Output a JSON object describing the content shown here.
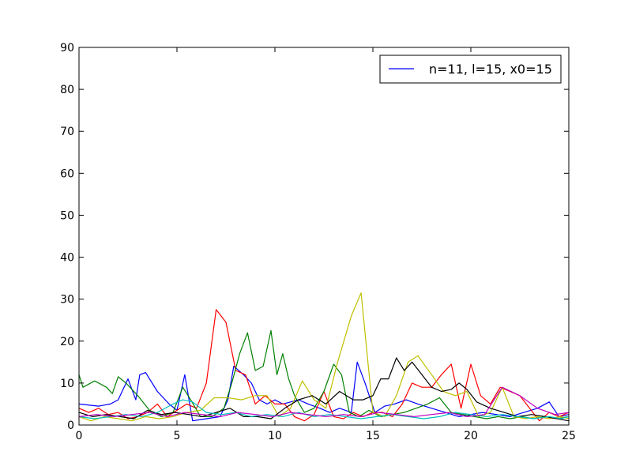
{
  "chart_data": {
    "type": "line",
    "title": "",
    "xlabel": "",
    "ylabel": "",
    "xlim": [
      0,
      25
    ],
    "ylim": [
      0,
      90
    ],
    "xticks": [
      "0",
      "5",
      "10",
      "15",
      "20",
      "25"
    ],
    "yticks": [
      "0",
      "10",
      "20",
      "30",
      "40",
      "50",
      "60",
      "70",
      "80",
      "90"
    ],
    "grid": false,
    "legend": {
      "position": "top-right",
      "entries": [
        {
          "label": "n=11, l=15, x0=15",
          "color": "#0000ff"
        }
      ]
    },
    "series": [
      {
        "name": "n=11, l=15, x0=15",
        "color": "#0000ff",
        "x": [
          0,
          1,
          1.6,
          2,
          2.5,
          2.9,
          3.1,
          3.4,
          4,
          4.6,
          5,
          5.4,
          5.8,
          6.5,
          7.2,
          7.6,
          7.9,
          8.4,
          8.8,
          9.2,
          9.6,
          10,
          10.4,
          10.8,
          11.2,
          11.7,
          12.3,
          12.8,
          13.3,
          13.9,
          14.2,
          14.6,
          15.1,
          15.6,
          16.1,
          16.7,
          17.3,
          18,
          18.7,
          19.4,
          20,
          20.6,
          21.3,
          22,
          22.7,
          23.4,
          24,
          24.5,
          25
        ],
        "y": [
          5,
          4.5,
          5,
          6,
          11,
          6,
          12,
          12.5,
          8,
          5,
          3.5,
          12,
          1,
          1.5,
          2,
          6,
          14,
          12,
          10,
          6,
          5,
          6,
          5,
          5.5,
          6,
          5,
          4,
          3,
          4,
          3,
          15,
          10,
          3,
          4.5,
          5,
          6,
          5,
          4,
          3,
          2,
          2.5,
          3,
          2.5,
          2,
          3,
          4,
          5.5,
          2,
          2.5
        ]
      },
      {
        "name": "",
        "color": "#ff0000",
        "x": [
          0,
          0.5,
          1,
          1.5,
          2,
          2.5,
          3,
          3.5,
          4,
          4.5,
          5,
          5.5,
          6,
          6.5,
          7,
          7.5,
          8,
          8.5,
          9,
          9.5,
          10,
          10.5,
          11,
          11.5,
          12,
          12.5,
          13,
          13.5,
          14,
          14.5,
          15,
          15.5,
          16,
          16.5,
          17,
          17.5,
          18,
          18.5,
          19,
          19.5,
          20,
          20.5,
          21,
          21.5,
          22,
          22.5,
          23,
          23.5,
          24,
          24.5,
          25
        ],
        "y": [
          4,
          3,
          4,
          2.5,
          3,
          1.5,
          2,
          3,
          5,
          2,
          3.5,
          5,
          4,
          10,
          27.5,
          24.5,
          13,
          12,
          5,
          7,
          5,
          5,
          2,
          1,
          2.5,
          8,
          2,
          1.5,
          3,
          2,
          3,
          3,
          2,
          5,
          10,
          9,
          9,
          12,
          14.5,
          4,
          14.5,
          7,
          5,
          9,
          8,
          7,
          4,
          1,
          3,
          2,
          3
        ]
      },
      {
        "name": "",
        "color": "#008000",
        "x": [
          0,
          0.2,
          0.8,
          1.4,
          1.7,
          2,
          2.4,
          3,
          3.6,
          4.2,
          4.8,
          5.3,
          5.7,
          6.2,
          6.8,
          7.4,
          7.8,
          8.2,
          8.6,
          9,
          9.4,
          9.8,
          10.1,
          10.4,
          10.7,
          11,
          11.5,
          12,
          12.5,
          13,
          13.4,
          13.8,
          14.3,
          14.8,
          15.4,
          16,
          16.6,
          17.2,
          17.8,
          18.4,
          19,
          19.6,
          20.2,
          20.8,
          21.4,
          22,
          22.6,
          23.2,
          23.8,
          24.4,
          25
        ],
        "y": [
          12,
          9,
          10.5,
          9,
          7.5,
          11.5,
          10,
          7,
          3.5,
          2,
          3,
          9,
          6,
          2,
          2,
          4,
          10,
          17,
          22,
          13,
          14,
          22.5,
          12,
          17,
          11,
          7,
          3,
          4,
          8,
          14.5,
          12,
          3,
          2,
          3.5,
          2,
          2.5,
          3,
          4,
          5,
          6.5,
          3,
          2.5,
          2,
          1.5,
          2,
          1.5,
          2,
          1.5,
          2,
          1.5,
          2
        ]
      },
      {
        "name": "",
        "color": "#bfbf00",
        "x": [
          0,
          0.6,
          1.3,
          2,
          2.7,
          3.4,
          4.1,
          4.8,
          5.5,
          6.2,
          6.9,
          7.6,
          8.3,
          9,
          9.6,
          10.2,
          10.8,
          11.4,
          12,
          12.6,
          13.2,
          13.9,
          14.4,
          15,
          15.6,
          16.2,
          16.8,
          17.3,
          18,
          18.6,
          19.2,
          19.8,
          20.4,
          21,
          21.6,
          22.2,
          22.8,
          23.4,
          24,
          24.6,
          25
        ],
        "y": [
          2,
          1,
          2,
          1.5,
          1,
          2,
          1.5,
          2,
          3,
          3.5,
          6.5,
          6.5,
          6,
          7,
          7,
          2,
          4,
          10.5,
          6,
          4,
          15,
          26,
          31.5,
          3,
          2,
          7,
          15,
          16.5,
          12,
          8,
          7,
          8,
          2,
          3,
          9,
          2,
          1.5,
          2,
          1.5,
          2,
          1.5
        ]
      },
      {
        "name": "",
        "color": "#000000",
        "x": [
          0,
          0.7,
          1.4,
          2.1,
          2.8,
          3.5,
          4.2,
          4.9,
          5.6,
          6.3,
          7,
          7.7,
          8.4,
          9.1,
          9.8,
          10.5,
          11.2,
          11.9,
          12.6,
          13.3,
          14,
          14.5,
          15,
          15.4,
          15.8,
          16.2,
          16.6,
          17,
          17.5,
          18,
          18.5,
          19,
          19.4,
          19.8,
          20.3,
          21,
          21.7,
          22.4,
          23.1,
          23.8,
          24.4,
          25
        ],
        "y": [
          3,
          2,
          2.5,
          2,
          1.5,
          3.5,
          2.5,
          3,
          2.5,
          2,
          3,
          4,
          2,
          2,
          1.5,
          4,
          6,
          7,
          5,
          8,
          6,
          6,
          7,
          11,
          11,
          16,
          13,
          15,
          12,
          9,
          8,
          8.5,
          10,
          8.5,
          5.5,
          4,
          3,
          2,
          2.5,
          2,
          1.5,
          1
        ]
      },
      {
        "name": "",
        "color": "#00bfbf",
        "x": [
          0,
          0.8,
          1.6,
          2.4,
          3.2,
          4,
          4.8,
          5.3,
          5.8,
          6.5,
          7.3,
          8,
          8.8,
          9.6,
          10.4,
          11.2,
          12,
          12.8,
          13.6,
          14.4,
          15.2,
          16,
          16.8,
          17.6,
          18.4,
          19.2,
          20,
          20.8,
          21.6,
          22.4,
          23.2,
          24,
          24.6,
          25
        ],
        "y": [
          2,
          1.5,
          2,
          2.5,
          2,
          3,
          5,
          6,
          5.5,
          3,
          2.5,
          3,
          2,
          2.5,
          2,
          3,
          2,
          2.5,
          2,
          1.5,
          2,
          2.5,
          2,
          1.5,
          2,
          3,
          2.5,
          2,
          2.5,
          2,
          1.5,
          2,
          1.5,
          2
        ]
      },
      {
        "name": "",
        "color": "#bf00bf",
        "x": [
          0,
          0.9,
          1.8,
          2.7,
          3.6,
          4.5,
          5.4,
          6.3,
          7.2,
          8.1,
          9,
          9.9,
          10.8,
          11.7,
          12.6,
          13.5,
          14.4,
          15.3,
          16.2,
          17.1,
          18,
          18.9,
          19.8,
          20.7,
          21.6,
          22.5,
          23.4,
          24.3,
          25
        ],
        "y": [
          2,
          2.5,
          2,
          2.5,
          3,
          2,
          3,
          2.5,
          2,
          3,
          2.5,
          2,
          3,
          2.5,
          2,
          2.5,
          2,
          3,
          2.5,
          2,
          2.5,
          3,
          2,
          2.5,
          9,
          7,
          4,
          2.5,
          3
        ]
      }
    ]
  }
}
